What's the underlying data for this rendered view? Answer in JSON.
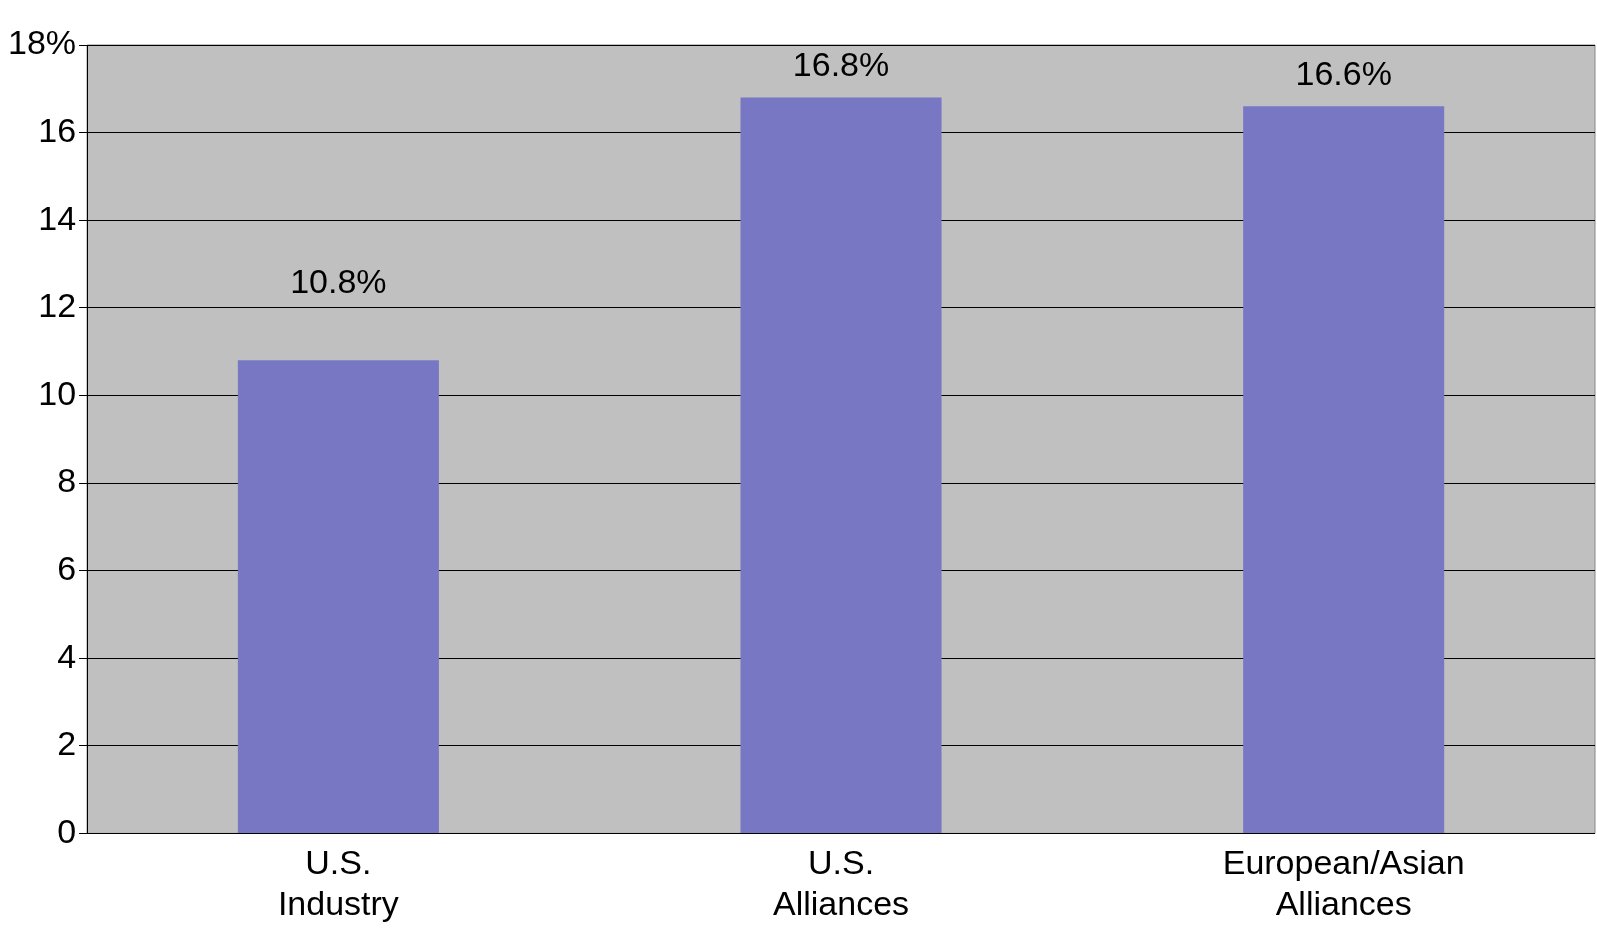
{
  "chart_data": {
    "type": "bar",
    "categories": [
      "U.S. Industry",
      "U.S. Alliances",
      "European/Asian Alliances"
    ],
    "values": [
      10.8,
      16.8,
      16.6
    ],
    "value_labels": [
      "10.8%",
      "16.8%",
      "16.6%"
    ],
    "color": "#7777c4",
    "ylim": [
      0,
      18
    ],
    "yticks": [
      0,
      2,
      4,
      6,
      8,
      10,
      12,
      14,
      16,
      {
        "value": 18,
        "label": "18%"
      }
    ],
    "grid": "y"
  }
}
